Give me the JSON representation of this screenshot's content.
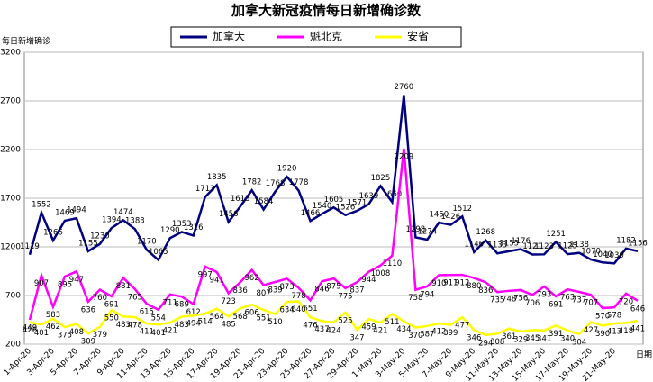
{
  "chart_data": {
    "type": "line",
    "title": "加拿大新冠疫情每日新增确诊数",
    "y_label": "每日新增确诊",
    "x_label": "日期",
    "categories": [
      "1-Apr-20",
      null,
      "3-Apr-20",
      null,
      "5-Apr-20",
      null,
      "7-Apr-20",
      null,
      "9-Apr-20",
      null,
      "11-Apr-20",
      null,
      "13-Apr-20",
      null,
      "15-Apr-20",
      null,
      "17-Apr-20",
      null,
      "19-Apr-20",
      null,
      "21-Apr-20",
      null,
      "23-Apr-20",
      null,
      "25-Apr-20",
      null,
      "27-Apr-20",
      null,
      "29-Apr-20",
      null,
      "1-May-20",
      null,
      "3-May-20",
      null,
      "5-May-20",
      null,
      "7-May-20",
      null,
      "9-May-20",
      null,
      "11-May-20",
      null,
      "13-May-20",
      null,
      "15-May-20",
      null,
      "17-May-20",
      null,
      "19-May-20",
      null,
      "21-May-20",
      null,
      null
    ],
    "series": [
      {
        "name": "加拿大",
        "color": "#000080",
        "values": [
          1119,
          1552,
          1266,
          1469,
          1494,
          1155,
          1230,
          1394,
          1474,
          1383,
          1170,
          1065,
          1290,
          1353,
          1316,
          1713,
          1835,
          1456,
          1613,
          1782,
          1584,
          1768,
          1920,
          1778,
          1466,
          1540,
          1605,
          1526,
          1571,
          1639,
          1825,
          1660,
          2760,
          1298,
          1274,
          1450,
          1426,
          1512,
          1146,
          1268,
          1133,
          1155,
          1176,
          1121,
          1123,
          1251,
          1125,
          1138,
          1070,
          1040,
          1030,
          1182,
          1156
        ]
      },
      {
        "name": "魁北克",
        "color": "#ff00ff",
        "values": [
          449,
          907,
          583,
          895,
          947,
          636,
          760,
          691,
          881,
          765,
          615,
          554,
          711,
          689,
          612,
          997,
          941,
          723,
          836,
          962,
          807,
          839,
          873,
          778,
          651,
          846,
          875,
          775,
          837,
          944,
          1008,
          1110,
          2209,
          758,
          794,
          910,
          911,
          912,
          880,
          836,
          735,
          748,
          756,
          706,
          793,
          691,
          763,
          737,
          707,
          570,
          578,
          720,
          646
        ]
      },
      {
        "name": "安省",
        "color": "#ffff00",
        "values": [
          426,
          401,
          462,
          375,
          408,
          309,
          379,
          550,
          483,
          478,
          411,
          401,
          421,
          483,
          494,
          514,
          564,
          485,
          568,
          606,
          551,
          510,
          634,
          640,
          476,
          437,
          424,
          525,
          347,
          459,
          421,
          511,
          434,
          370,
          387,
          412,
          399,
          477,
          346,
          294,
          308,
          361,
          329,
          345,
          341,
          391,
          340,
          304,
          427,
          390,
          413,
          418,
          441
        ]
      }
    ],
    "ylim": [
      200,
      3200
    ],
    "yticks": [
      200,
      700,
      1200,
      1700,
      2200,
      2700,
      3200
    ],
    "grid": true,
    "legend": "top"
  }
}
